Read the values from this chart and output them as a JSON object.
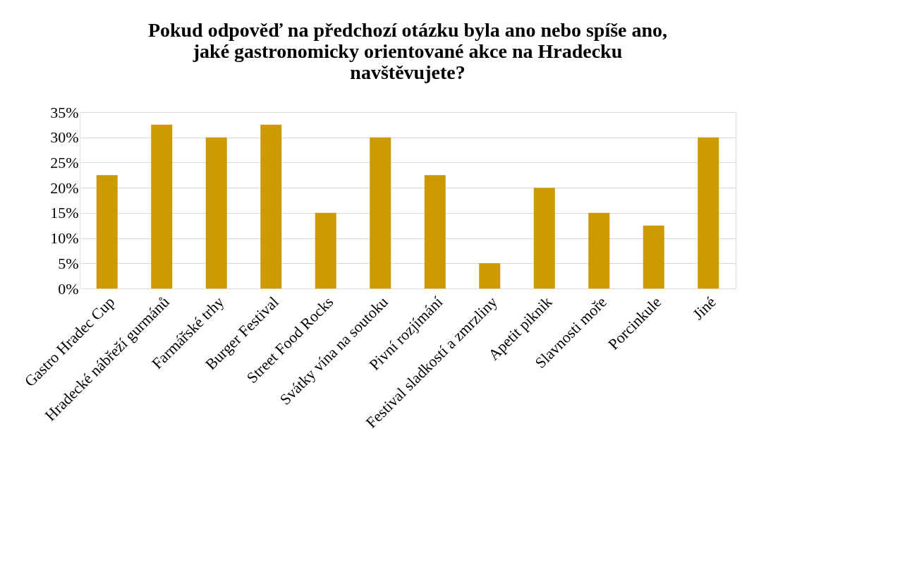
{
  "chart_data": {
    "type": "bar",
    "title": "Pokud odpověď na předchozí otázku byla ano nebo spíše ano,\njaké gastronomicky orientované akce na Hradecku\nnavštěvujete?",
    "categories": [
      "Gastro Hradec Cup",
      "Hradecké nábřeží gurmánů",
      "Farmářské trhy",
      "Burger Festival",
      "Street Food Rocks",
      "Svátky vína na soutoku",
      "Pivní rozjímání",
      "Festival sladkostí a zmrzliny",
      "Apetit piknik",
      "Slavnosti moře",
      "Porcinkule",
      "Jiné"
    ],
    "values": [
      22.5,
      32.5,
      30,
      32.5,
      15,
      30,
      22.5,
      5,
      20,
      15,
      12.5,
      30
    ],
    "color": "#cc9900",
    "ylim": [
      0,
      35
    ],
    "yticks": [
      {
        "value": 0,
        "label": "0%"
      },
      {
        "value": 5,
        "label": "5%"
      },
      {
        "value": 10,
        "label": "10%"
      },
      {
        "value": 15,
        "label": "15%"
      },
      {
        "value": 20,
        "label": "20%"
      },
      {
        "value": 25,
        "label": "25%"
      },
      {
        "value": 30,
        "label": "30%"
      },
      {
        "value": 35,
        "label": "35%"
      }
    ],
    "grid": "y"
  }
}
